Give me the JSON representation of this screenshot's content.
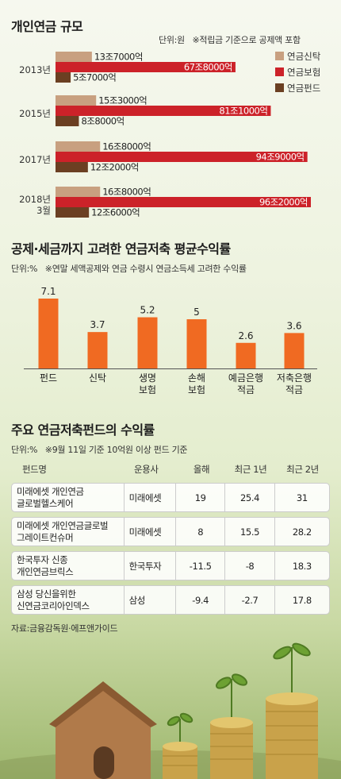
{
  "section1": {
    "title": "개인연금 규모",
    "unit_note": "단위:원",
    "basis_note": "※적립금 기준으로 공제액 포함",
    "chart_data": {
      "type": "bar",
      "orientation": "horizontal",
      "categories": [
        "2013년",
        "2015년",
        "2017년",
        "2018년\n3월"
      ],
      "series": [
        {
          "name": "연금신탁",
          "color": "#c8a080",
          "values": [
            13.7,
            15.3,
            16.8,
            16.8
          ],
          "labels": [
            "13조7000억",
            "15조3000억",
            "16조8000억",
            "16조8000억"
          ]
        },
        {
          "name": "연금보험",
          "color": "#cc2229",
          "values": [
            67.8,
            81.1,
            94.9,
            96.2
          ],
          "labels": [
            "67조8000억",
            "81조1000억",
            "94조9000억",
            "96조2000억"
          ]
        },
        {
          "name": "연금펀드",
          "color": "#6b3f22",
          "values": [
            5.7,
            8.8,
            12.2,
            12.6
          ],
          "labels": [
            "5조7000억",
            "8조8000억",
            "12조2000억",
            "12조6000억"
          ]
        }
      ]
    }
  },
  "section2": {
    "title": "공제·세금까지 고려한 연금저축 평균수익률",
    "unit_note": "단위:%",
    "basis_note": "※연말 세액공제와 연금 수령시 연금소득세 고려한 수익률",
    "chart_data": {
      "type": "bar",
      "categories": [
        "펀드",
        "신탁",
        "생명\n보험",
        "손해\n보험",
        "예금은행\n적금",
        "저축은행\n적금"
      ],
      "values": [
        7.1,
        3.7,
        5.2,
        5,
        2.6,
        3.6
      ],
      "value_labels": [
        "7.1",
        "3.7",
        "5.2",
        "5",
        "2.6",
        "3.6"
      ],
      "color": "#f06a22"
    }
  },
  "section3": {
    "title": "주요 연금저축펀드의 수익률",
    "unit_note": "단위:%",
    "basis_note": "※9월 11일 기준 10억원 이상 펀드 기준",
    "columns": [
      "펀드명",
      "운용사",
      "올해",
      "최근 1년",
      "최근 2년"
    ],
    "rows": [
      {
        "fund": "미래에셋 개인연금\n글로벌헬스케어",
        "manager": "미래에셋",
        "ytd": "19",
        "y1": "25.4",
        "y2": "31"
      },
      {
        "fund": "미래에셋 개인연금글로벌\n그레이트컨슈머",
        "manager": "미래에셋",
        "ytd": "8",
        "y1": "15.5",
        "y2": "28.2"
      },
      {
        "fund": "한국투자 신종\n개인연금브릭스",
        "manager": "한국투자",
        "ytd": "-11.5",
        "y1": "-8",
        "y2": "18.3"
      },
      {
        "fund": "삼성 당신을위한\n신연금코리아인덱스",
        "manager": "삼성",
        "ytd": "-9.4",
        "y1": "-2.7",
        "y2": "17.8"
      }
    ]
  },
  "source": "자료:금융감독원·에프앤가이드"
}
